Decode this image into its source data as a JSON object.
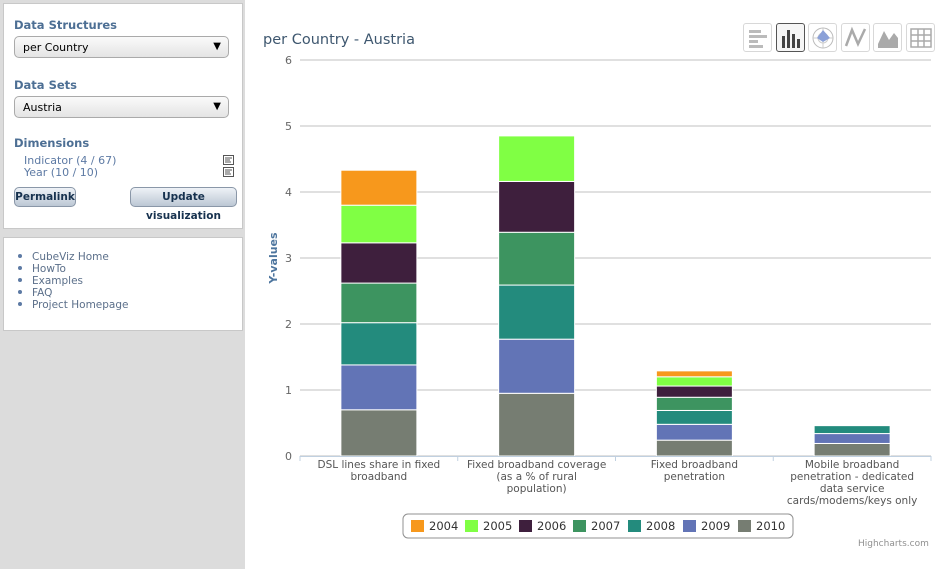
{
  "sidebar": {
    "structures_title": "Data Structures",
    "structure_value": "per Country",
    "datasets_title": "Data Sets",
    "dataset_value": "Austria",
    "dimensions_title": "Dimensions",
    "dimensions": [
      {
        "label": "Indicator (4 / 67)"
      },
      {
        "label": "Year (10 / 10)"
      }
    ],
    "permalink_label": "Permalink",
    "update_label": "Update visualization",
    "links": [
      "CubeViz Home",
      "HowTo",
      "Examples",
      "FAQ",
      "Project Homepage"
    ]
  },
  "toolbar": {
    "icons": [
      "bar-chart-icon",
      "column-chart-icon",
      "polar-chart-icon",
      "line-chart-icon",
      "area-chart-icon",
      "table-icon"
    ],
    "active": "column-chart-icon"
  },
  "chart_data": {
    "type": "bar",
    "stacked": true,
    "title": "per Country - Austria",
    "xlabel": "",
    "ylabel": "Y-values",
    "ylim": [
      0,
      6
    ],
    "yticks": [
      "0",
      "1",
      "2",
      "3",
      "4",
      "5",
      "6"
    ],
    "grid": true,
    "legend_position": "bottom",
    "categories": [
      [
        "DSL lines share in fixed",
        "broadband"
      ],
      [
        "Fixed broadband coverage",
        "(as a % of rural",
        "population)"
      ],
      [
        "Fixed broadband",
        "penetration"
      ],
      [
        "Mobile broadband",
        "penetration - dedicated",
        "data service",
        "cards/modems/keys only"
      ]
    ],
    "series": [
      {
        "name": "2004",
        "color": "#f7981c",
        "values": [
          0.53,
          0,
          0.09,
          0
        ]
      },
      {
        "name": "2005",
        "color": "#80ff44",
        "values": [
          0.57,
          0.69,
          0.14,
          0
        ]
      },
      {
        "name": "2006",
        "color": "#3e1f3d",
        "values": [
          0.61,
          0.77,
          0.17,
          0
        ]
      },
      {
        "name": "2007",
        "color": "#3d9460",
        "values": [
          0.6,
          0.8,
          0.2,
          0
        ]
      },
      {
        "name": "2008",
        "color": "#238b7d",
        "values": [
          0.64,
          0.82,
          0.21,
          0.12
        ]
      },
      {
        "name": "2009",
        "color": "#6274b6",
        "values": [
          0.68,
          0.82,
          0.24,
          0.15
        ]
      },
      {
        "name": "2010",
        "color": "#767d72",
        "values": [
          0.7,
          0.95,
          0.24,
          0.19
        ]
      }
    ]
  },
  "credits": "Highcharts.com"
}
